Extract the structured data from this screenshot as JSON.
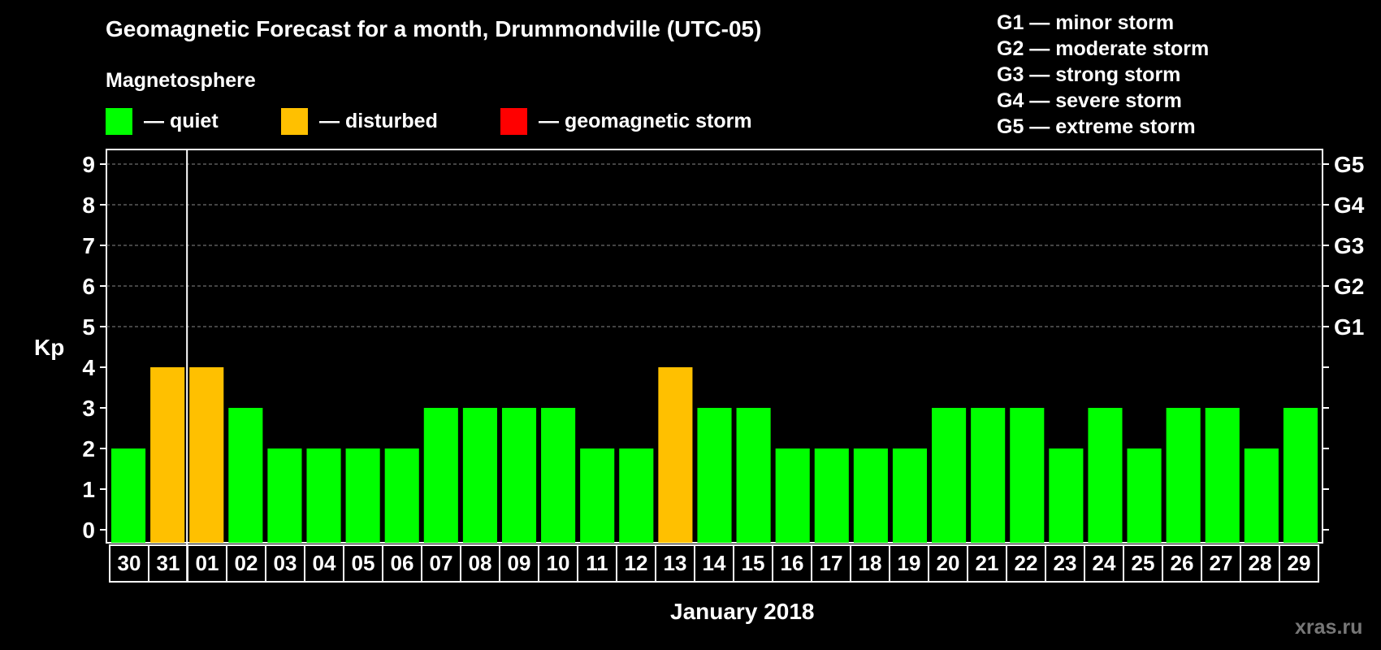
{
  "colors": {
    "quiet": "#00ff00",
    "disturbed": "#ffc000",
    "storm": "#ff0000",
    "axis": "#ffffff",
    "grid": "#888888"
  },
  "legend": {
    "subtitle": "Magnetosphere",
    "items": [
      {
        "key": "quiet",
        "label": "— quiet"
      },
      {
        "key": "disturbed",
        "label": "— disturbed"
      },
      {
        "key": "storm",
        "label": "— geomagnetic storm"
      }
    ],
    "g_scale": [
      "G1 — minor storm",
      "G2 — moderate storm",
      "G3 — strong storm",
      "G4 — severe storm",
      "G5 — extreme storm"
    ]
  },
  "watermark": "xras.ru",
  "chart_data": {
    "type": "bar",
    "title": "Geomagnetic Forecast for a month, Drummondville (UTC-05)",
    "xlabel": "January 2018",
    "ylabel": "Kp",
    "ylim": [
      0,
      9
    ],
    "yticks": [
      "0",
      "1",
      "2",
      "3",
      "4",
      "5",
      "6",
      "7",
      "8",
      "9"
    ],
    "right_axis": [
      {
        "value": 5,
        "label": "G1"
      },
      {
        "value": 6,
        "label": "G2"
      },
      {
        "value": 7,
        "label": "G3"
      },
      {
        "value": 8,
        "label": "G4"
      },
      {
        "value": 9,
        "label": "G5"
      }
    ],
    "grid_from": 5,
    "month_divider_after_index": 1,
    "categories": [
      "30",
      "31",
      "01",
      "02",
      "03",
      "04",
      "05",
      "06",
      "07",
      "08",
      "09",
      "10",
      "11",
      "12",
      "13",
      "14",
      "15",
      "16",
      "17",
      "18",
      "19",
      "20",
      "21",
      "22",
      "23",
      "24",
      "25",
      "26",
      "27",
      "28",
      "29"
    ],
    "values": [
      2,
      4,
      4,
      3,
      2,
      2,
      2,
      2,
      3,
      3,
      3,
      3,
      2,
      2,
      4,
      3,
      3,
      2,
      2,
      2,
      2,
      3,
      3,
      3,
      2,
      3,
      2,
      3,
      3,
      2,
      3
    ],
    "levels": [
      "quiet",
      "disturbed",
      "disturbed",
      "quiet",
      "quiet",
      "quiet",
      "quiet",
      "quiet",
      "quiet",
      "quiet",
      "quiet",
      "quiet",
      "quiet",
      "quiet",
      "disturbed",
      "quiet",
      "quiet",
      "quiet",
      "quiet",
      "quiet",
      "quiet",
      "quiet",
      "quiet",
      "quiet",
      "quiet",
      "quiet",
      "quiet",
      "quiet",
      "quiet",
      "quiet",
      "quiet"
    ]
  }
}
